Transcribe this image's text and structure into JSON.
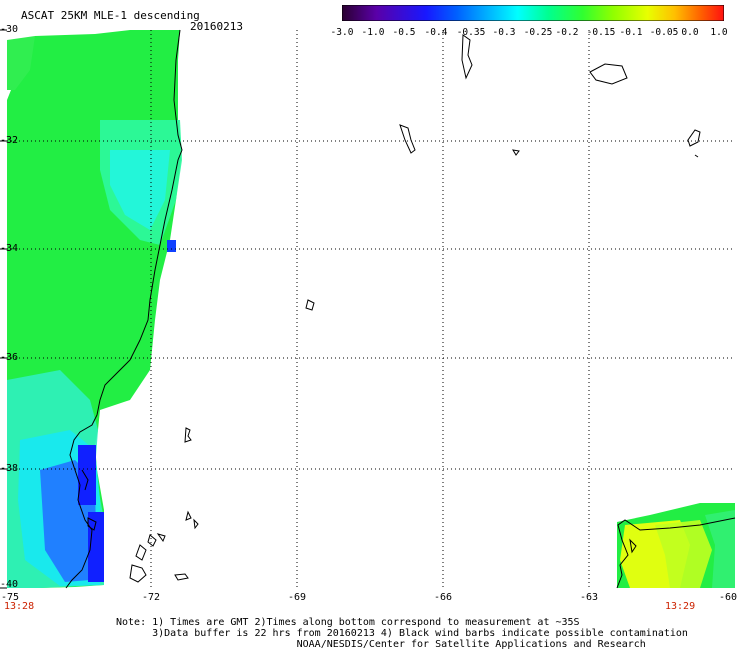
{
  "header": {
    "title": "ASCAT 25KM MLE-1 descending",
    "date": "20160213"
  },
  "colorbar": {
    "ticks": [
      "-3.0",
      "-1.0",
      "-0.5",
      "-0.4",
      "-0.35",
      "-0.3",
      "-0.25",
      "-0.2",
      "-0.15",
      "-0.1",
      "-0.05",
      "0.0",
      "1.0"
    ],
    "colors": [
      "#2a0030",
      "#5a00a8",
      "#1818ff",
      "#0060ff",
      "#00b0ff",
      "#00ffff",
      "#00ff90",
      "#30ff30",
      "#90ff00",
      "#e8ff00",
      "#ffc000",
      "#ff6000",
      "#ff1010"
    ]
  },
  "map": {
    "lat_labels": [
      "-30",
      "-32",
      "-34",
      "-36",
      "-38",
      "-40"
    ],
    "lon_labels": [
      "-75",
      "-72",
      "-69",
      "-66",
      "-63",
      "-60"
    ],
    "time_left": "13:28",
    "time_right": "13:29",
    "colors": {
      "green": "#22ee44",
      "cyan": "#00ffe0",
      "blue": "#1020ff",
      "yellow": "#e0ff10",
      "coast": "#000000",
      "grid": "#000000"
    }
  },
  "notes": {
    "line1": "Note: 1) Times are GMT 2)Times along bottom correspond to measurement at ~35S",
    "line2": "      3)Data buffer is 22 hrs from 20160213 4) Black wind barbs indicate possible contamination",
    "line3": "                              NOAA/NESDIS/Center for Satellite Applications and Research"
  }
}
